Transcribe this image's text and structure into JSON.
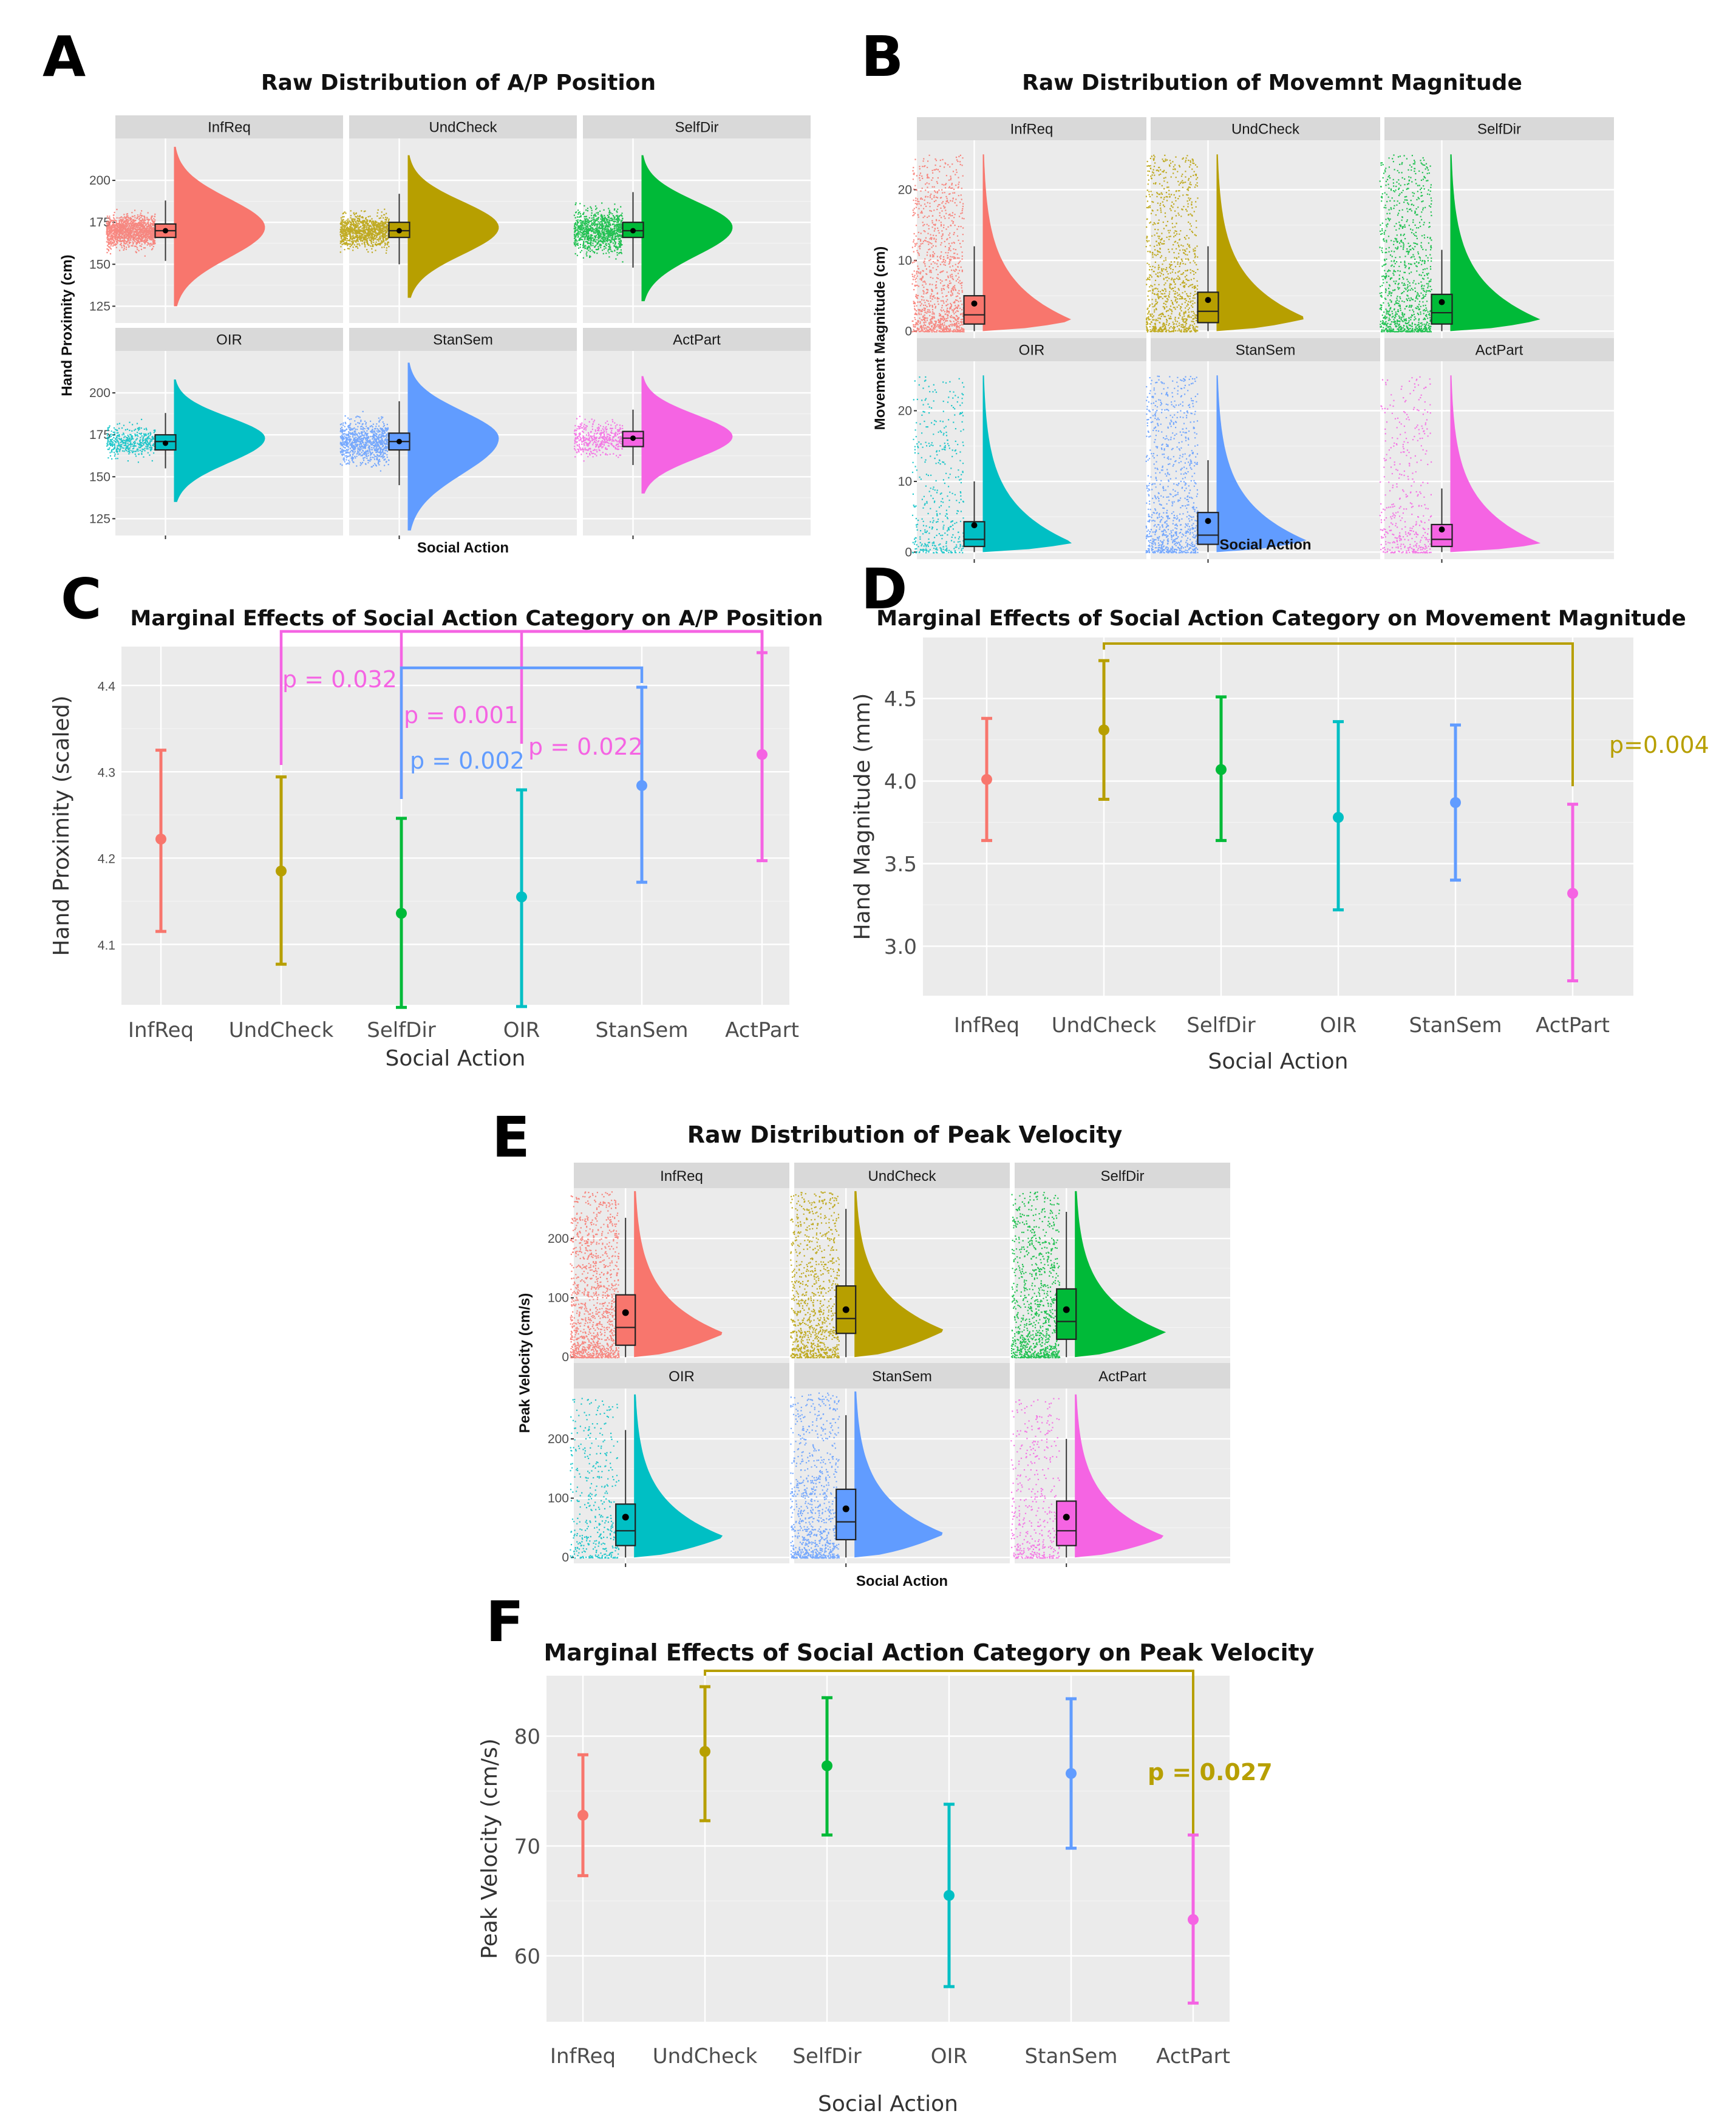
{
  "figure": {
    "panel_letters": [
      "A",
      "B",
      "C",
      "D",
      "E",
      "F"
    ]
  },
  "categories": [
    "InfReq",
    "UndCheck",
    "SelfDir",
    "OIR",
    "StanSem",
    "ActPart"
  ],
  "colors": [
    "#F8766D",
    "#B79F00",
    "#00BA38",
    "#00BFC4",
    "#619CFF",
    "#F564E3"
  ],
  "chart_data": [
    {
      "id": "A",
      "type": "raincloud",
      "title": "Raw Distribution of A/P Position",
      "xlabel": "Social Action",
      "ylabel": "Hand Proximity (cm)",
      "facets": [
        "InfReq",
        "UndCheck",
        "SelfDir",
        "OIR",
        "StanSem",
        "ActPart"
      ],
      "ylim": [
        115,
        225
      ],
      "yticks_top": [
        125,
        150,
        175,
        200
      ],
      "yticks_bottom": [
        125,
        150,
        175,
        200
      ],
      "series": [
        {
          "name": "InfReq",
          "point_range": [
            145,
            200
          ],
          "q1": 166,
          "median": 170,
          "q3": 174,
          "mean": 170,
          "whisker": [
            152,
            188
          ],
          "density_range": [
            125,
            220
          ],
          "density_peak": 172
        },
        {
          "name": "UndCheck",
          "point_range": [
            145,
            200
          ],
          "q1": 166,
          "median": 170,
          "q3": 175,
          "mean": 170,
          "whisker": [
            150,
            192
          ],
          "density_range": [
            130,
            215
          ],
          "density_peak": 172
        },
        {
          "name": "SelfDir",
          "point_range": [
            130,
            205
          ],
          "q1": 166,
          "median": 170,
          "q3": 175,
          "mean": 170,
          "whisker": [
            148,
            193
          ],
          "density_range": [
            128,
            215
          ],
          "density_peak": 172
        },
        {
          "name": "OIR",
          "point_range": [
            148,
            200
          ],
          "q1": 166,
          "median": 171,
          "q3": 175,
          "mean": 170,
          "whisker": [
            155,
            188
          ],
          "density_range": [
            135,
            208
          ],
          "density_peak": 173
        },
        {
          "name": "StanSem",
          "point_range": [
            135,
            210
          ],
          "q1": 166,
          "median": 171,
          "q3": 176,
          "mean": 171,
          "whisker": [
            145,
            195
          ],
          "density_range": [
            118,
            218
          ],
          "density_peak": 173
        },
        {
          "name": "ActPart",
          "point_range": [
            145,
            205
          ],
          "q1": 168,
          "median": 173,
          "q3": 177,
          "mean": 173,
          "whisker": [
            157,
            190
          ],
          "density_range": [
            140,
            210
          ],
          "density_peak": 174
        }
      ]
    },
    {
      "id": "B",
      "type": "raincloud",
      "title": "Raw Distribution of Movemnt Magnitude",
      "xlabel": "Social Action",
      "ylabel": "Movement Magnitude (cm)",
      "facets": [
        "InfReq",
        "UndCheck",
        "SelfDir",
        "OIR",
        "StanSem",
        "ActPart"
      ],
      "ylim": [
        -1,
        27
      ],
      "yticks_top": [
        0,
        10,
        20
      ],
      "yticks_bottom": [
        0,
        10,
        20
      ],
      "series": [
        {
          "name": "InfReq",
          "point_range": [
            0,
            25
          ],
          "q1": 1,
          "median": 2.3,
          "q3": 5,
          "mean": 3.9,
          "whisker": [
            0,
            12
          ],
          "density_range": [
            0,
            25
          ],
          "density_peak": 1.5
        },
        {
          "name": "UndCheck",
          "point_range": [
            0,
            25
          ],
          "q1": 1.2,
          "median": 2.8,
          "q3": 5.5,
          "mean": 4.4,
          "whisker": [
            0,
            12
          ],
          "density_range": [
            0,
            25
          ],
          "density_peak": 1.8
        },
        {
          "name": "SelfDir",
          "point_range": [
            0,
            25
          ],
          "q1": 1,
          "median": 2.6,
          "q3": 5.2,
          "mean": 4.1,
          "whisker": [
            0,
            11.5
          ],
          "density_range": [
            0,
            25
          ],
          "density_peak": 1.6
        },
        {
          "name": "OIR",
          "point_range": [
            0,
            25
          ],
          "q1": 0.8,
          "median": 1.8,
          "q3": 4.3,
          "mean": 3.8,
          "whisker": [
            0,
            10
          ],
          "density_range": [
            0,
            25
          ],
          "density_peak": 1.3
        },
        {
          "name": "StanSem",
          "point_range": [
            0,
            25
          ],
          "q1": 1.1,
          "median": 2.4,
          "q3": 5.6,
          "mean": 4.4,
          "whisker": [
            0,
            13
          ],
          "density_range": [
            0,
            25
          ],
          "density_peak": 1.6
        },
        {
          "name": "ActPart",
          "point_range": [
            0,
            25
          ],
          "q1": 0.8,
          "median": 1.8,
          "q3": 3.9,
          "mean": 3.2,
          "whisker": [
            0,
            9
          ],
          "density_range": [
            0,
            25
          ],
          "density_peak": 1.2
        }
      ]
    },
    {
      "id": "C",
      "type": "errorbar",
      "title": "Marginal Effects of Social Action Category on A/P Position",
      "xlabel": "Social Action",
      "ylabel": "Hand Proximity (scaled)",
      "ylim": [
        4.03,
        4.445
      ],
      "yticks": [
        4.1,
        4.2,
        4.3,
        4.4
      ],
      "estimates": [
        4.222,
        4.185,
        4.136,
        4.155,
        4.284,
        4.32
      ],
      "lower": [
        4.115,
        4.077,
        4.027,
        4.028,
        4.172,
        4.197
      ],
      "upper": [
        4.325,
        4.294,
        4.246,
        4.279,
        4.398,
        4.438
      ],
      "comparisons": [
        {
          "label": "p = 0.032",
          "from": "UndCheck",
          "to": "ActPart",
          "color": "#F564E3"
        },
        {
          "label": "p = 0.001",
          "from": "SelfDir",
          "to": "ActPart",
          "color": "#F564E3"
        },
        {
          "label": "p = 0.022",
          "from": "OIR",
          "to": "ActPart",
          "color": "#F564E3"
        },
        {
          "label": "p = 0.002",
          "from": "SelfDir",
          "to": "StanSem",
          "color": "#619CFF"
        }
      ]
    },
    {
      "id": "D",
      "type": "errorbar",
      "title": "Marginal Effects of Social Action Category on Movement Magnitude",
      "xlabel": "Social Action",
      "ylabel": "Hand Magnitude (mm)",
      "ylim": [
        2.7,
        4.87
      ],
      "yticks": [
        3.0,
        3.5,
        4.0,
        4.5
      ],
      "ytick_labels": [
        "3.0",
        "3.5",
        "4.0",
        "4.5"
      ],
      "estimates": [
        4.01,
        4.31,
        4.07,
        3.78,
        3.87,
        3.32
      ],
      "lower": [
        3.64,
        3.89,
        3.64,
        3.22,
        3.4,
        2.79
      ],
      "upper": [
        4.38,
        4.73,
        4.51,
        4.36,
        4.34,
        3.86
      ],
      "comparisons": [
        {
          "label": "p=0.004",
          "from": "UndCheck",
          "to": "ActPart",
          "color": "#B79F00"
        }
      ]
    },
    {
      "id": "E",
      "type": "raincloud",
      "title": "Raw Distribution of Peak Velocity",
      "xlabel": "Social Action",
      "ylabel": "Peak Velocity (cm/s)",
      "facets": [
        "InfReq",
        "UndCheck",
        "SelfDir",
        "OIR",
        "StanSem",
        "ActPart"
      ],
      "ylim": [
        -10,
        285
      ],
      "yticks_top": [
        0,
        100,
        200
      ],
      "yticks_bottom": [
        0,
        100,
        200
      ],
      "series": [
        {
          "name": "InfReq",
          "point_range": [
            0,
            280
          ],
          "q1": 20,
          "median": 50,
          "q3": 105,
          "mean": 75,
          "whisker": [
            0,
            235
          ],
          "density_range": [
            0,
            280
          ],
          "density_peak": 40
        },
        {
          "name": "UndCheck",
          "point_range": [
            0,
            280
          ],
          "q1": 40,
          "median": 65,
          "q3": 120,
          "mean": 80,
          "whisker": [
            0,
            250
          ],
          "density_range": [
            0,
            280
          ],
          "density_peak": 45
        },
        {
          "name": "SelfDir",
          "point_range": [
            0,
            280
          ],
          "q1": 30,
          "median": 60,
          "q3": 115,
          "mean": 80,
          "whisker": [
            0,
            245
          ],
          "density_range": [
            0,
            280
          ],
          "density_peak": 42
        },
        {
          "name": "OIR",
          "point_range": [
            0,
            270
          ],
          "q1": 20,
          "median": 45,
          "q3": 90,
          "mean": 68,
          "whisker": [
            0,
            215
          ],
          "density_range": [
            0,
            275
          ],
          "density_peak": 35
        },
        {
          "name": "StanSem",
          "point_range": [
            0,
            280
          ],
          "q1": 30,
          "median": 60,
          "q3": 115,
          "mean": 82,
          "whisker": [
            0,
            240
          ],
          "density_range": [
            0,
            280
          ],
          "density_peak": 40
        },
        {
          "name": "ActPart",
          "point_range": [
            0,
            270
          ],
          "q1": 20,
          "median": 45,
          "q3": 95,
          "mean": 68,
          "whisker": [
            0,
            200
          ],
          "density_range": [
            0,
            275
          ],
          "density_peak": 35
        }
      ]
    },
    {
      "id": "F",
      "type": "errorbar",
      "title": "Marginal Effects of Social Action Category on Peak Velocity",
      "xlabel": "Social Action",
      "ylabel": "Peak Velocity (cm/s)",
      "ylim": [
        54,
        85.5
      ],
      "yticks": [
        60,
        70,
        80
      ],
      "ytick_labels": [
        "60",
        "70",
        "80"
      ],
      "estimates": [
        72.8,
        78.6,
        77.3,
        65.5,
        76.6,
        63.3
      ],
      "lower": [
        67.3,
        72.3,
        71.0,
        57.2,
        69.8,
        55.7
      ],
      "upper": [
        78.3,
        84.5,
        83.5,
        73.8,
        83.4,
        71.0
      ],
      "comparisons": [
        {
          "label": "p = 0.027",
          "from": "UndCheck",
          "to": "ActPart",
          "color": "#B79F00"
        }
      ]
    }
  ]
}
